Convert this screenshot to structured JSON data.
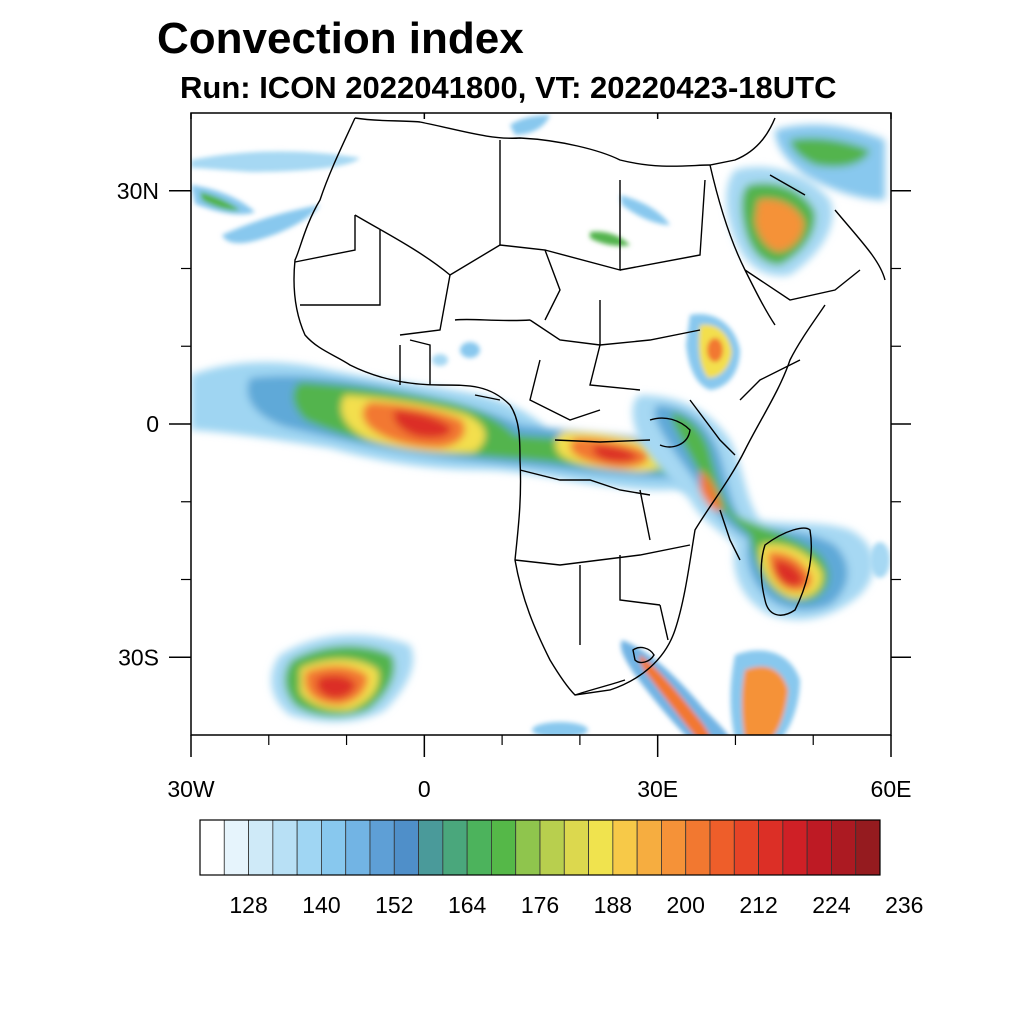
{
  "title": "Convection index",
  "subtitle": "Run: ICON 2022041800,  VT: 20220423-18UTC",
  "map": {
    "lon_range": [
      -30,
      60
    ],
    "lat_range": [
      -40,
      40
    ],
    "lon_ticks": [
      {
        "value": -30,
        "label": "30W"
      },
      {
        "value": 0,
        "label": "0"
      },
      {
        "value": 30,
        "label": "30E"
      },
      {
        "value": 60,
        "label": "60E"
      }
    ],
    "lat_ticks": [
      {
        "value": 30,
        "label": "30N"
      },
      {
        "value": 0,
        "label": "0"
      },
      {
        "value": -30,
        "label": "30S"
      }
    ],
    "minor_lon_ticks": [
      -20,
      -10,
      10,
      20,
      40,
      50
    ],
    "minor_lat_ticks": [
      20,
      10,
      -10,
      -20
    ]
  },
  "colorbar": {
    "colors": [
      "#ffffff",
      "#e6f4fc",
      "#cfeaf8",
      "#b8e0f5",
      "#a0d6f3",
      "#88c8ee",
      "#72b4e4",
      "#5e9fd6",
      "#4f8fc9",
      "#4a9a9a",
      "#4aa77c",
      "#4cb35c",
      "#55b848",
      "#8fc54d",
      "#b8cf4e",
      "#dcd84e",
      "#f0e34e",
      "#f7c948",
      "#f6ad40",
      "#f59238",
      "#f27830",
      "#ee5e2a",
      "#e64427",
      "#dc2f26",
      "#cf2026",
      "#be1a24",
      "#ac1a22",
      "#951b1f"
    ],
    "tick_labels": [
      "128",
      "140",
      "152",
      "164",
      "176",
      "188",
      "200",
      "212",
      "224",
      "236"
    ]
  }
}
